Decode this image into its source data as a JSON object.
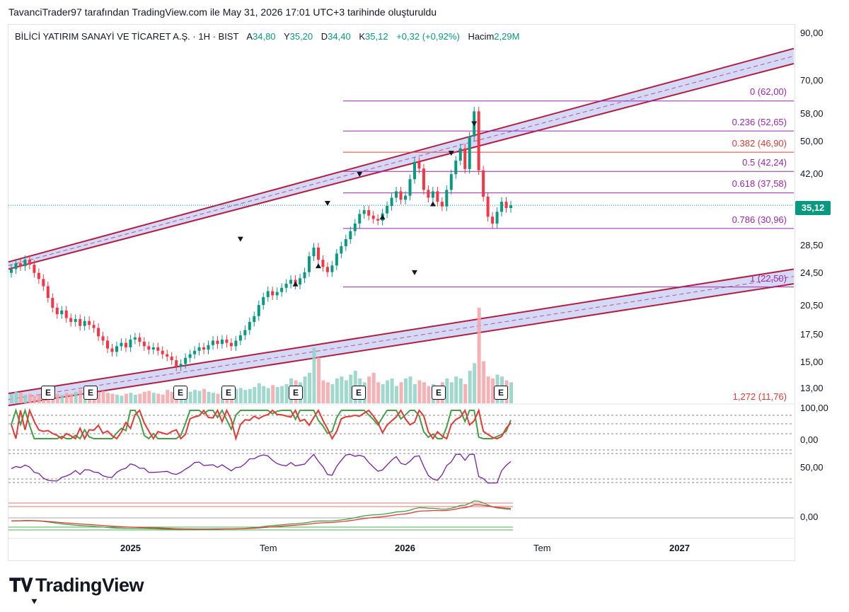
{
  "snapshot_text": "TavanciTrader97 tarafından TradingView.com ile May 31, 2026 17:01 UTC+3 tarihinde oluşturuldu",
  "legend": {
    "symbol": "BİLİCİ YATIRIM SANAYİ VE TİCARET A.Ş. · 1H · BIST",
    "open_label": "A",
    "open": "34,80",
    "high_label": "Y",
    "high": "35,20",
    "low_label": "D",
    "low": "34,40",
    "close_label": "K",
    "close": "35,12",
    "change": "+0,32 (+0,92%)",
    "volume_label": "Hacim",
    "volume": "2,29M"
  },
  "last_price_tag": "35,12",
  "price_axis": [
    "90,00",
    "70,00",
    "58,00",
    "50,00",
    "42,00",
    "35,12",
    "28,50",
    "24,50",
    "20,50",
    "17,50",
    "15,00",
    "13,00"
  ],
  "fib_levels": [
    {
      "label": "0 (62,00)",
      "price": 62.0,
      "color": "#9c27b0"
    },
    {
      "label": "0.236 (52,65)",
      "price": 52.65,
      "color": "#9c27b0"
    },
    {
      "label": "0.382 (46,90)",
      "price": 46.9,
      "color": "#e53935"
    },
    {
      "label": "0.5 (42,24)",
      "price": 42.24,
      "color": "#9c27b0"
    },
    {
      "label": "0.618 (37,58)",
      "price": 37.58,
      "color": "#9c27b0"
    },
    {
      "label": "0.786 (30,96)",
      "price": 30.96,
      "color": "#9c27b0"
    },
    {
      "label": "1 (22,50)",
      "price": 22.5,
      "color": "#9c27b0"
    },
    {
      "label": "1,272 (11,76)",
      "price": 11.76,
      "color": "#e53935"
    }
  ],
  "osc_axis": {
    "stoch_high": "100,00",
    "stoch_low": "0,00",
    "rsi_mid": "50,00",
    "macd_zero": "0,00"
  },
  "time_axis": [
    {
      "label": "2025",
      "bold": true
    },
    {
      "label": "Tem",
      "bold": false
    },
    {
      "label": "2026",
      "bold": true
    },
    {
      "label": "Tem",
      "bold": false
    },
    {
      "label": "2027",
      "bold": true
    }
  ],
  "earnings_marker": "E",
  "brand": "TradingView",
  "colors": {
    "up": "#089981",
    "down": "#f23645",
    "channel": "#b71c3c",
    "channel_fill": "#c7ccf6",
    "fib": "#9c27b0"
  },
  "chart_data": {
    "type": "candlestick",
    "symbol": "BİLİCİ YATIRIM SANAYİ VE TİCARET A.Ş.",
    "interval": "1H",
    "y_scale": "log",
    "ylim": [
      11.5,
      92
    ],
    "last_close": 35.12,
    "closes": [
      24.8,
      25.6,
      25.2,
      26.1,
      25.4,
      24.3,
      23.5,
      22.6,
      21.2,
      20.1,
      19.4,
      19.8,
      19.0,
      18.6,
      18.9,
      18.2,
      18.7,
      18.3,
      18.0,
      17.2,
      16.8,
      16.1,
      15.8,
      16.3,
      16.6,
      16.2,
      16.9,
      17.1,
      16.7,
      16.3,
      16.0,
      16.2,
      15.9,
      15.6,
      15.4,
      15.1,
      14.6,
      14.8,
      15.3,
      15.6,
      15.9,
      16.2,
      16.0,
      16.4,
      16.8,
      16.5,
      16.9,
      16.6,
      16.3,
      16.8,
      17.3,
      17.8,
      18.6,
      19.2,
      20.4,
      21.3,
      22.0,
      21.5,
      21.9,
      22.4,
      22.9,
      23.4,
      22.8,
      23.6,
      24.4,
      26.6,
      27.9,
      26.1,
      25.1,
      24.4,
      25.3,
      27.0,
      28.1,
      29.2,
      30.5,
      31.8,
      33.5,
      34.2,
      33.2,
      32.6,
      32.3,
      33.6,
      35.0,
      36.6,
      37.9,
      36.2,
      37.0,
      40.5,
      44.5,
      42.9,
      38.2,
      36.6,
      37.9,
      35.8,
      34.9,
      38.2,
      41.6,
      44.8,
      47.9,
      42.8,
      51.1,
      58.6,
      42.5,
      36.8,
      33.0,
      31.8,
      33.9,
      35.8,
      34.6,
      35.1
    ],
    "volume_relative": [
      0.1,
      0.12,
      0.11,
      0.09,
      0.1,
      0.08,
      0.09,
      0.13,
      0.11,
      0.12,
      0.1,
      0.09,
      0.11,
      0.1,
      0.12,
      0.14,
      0.11,
      0.1,
      0.09,
      0.12,
      0.13,
      0.11,
      0.1,
      0.09,
      0.08,
      0.1,
      0.11,
      0.09,
      0.1,
      0.12,
      0.13,
      0.11,
      0.1,
      0.09,
      0.14,
      0.12,
      0.13,
      0.11,
      0.1,
      0.12,
      0.14,
      0.13,
      0.15,
      0.12,
      0.11,
      0.1,
      0.13,
      0.12,
      0.14,
      0.15,
      0.16,
      0.14,
      0.15,
      0.17,
      0.21,
      0.18,
      0.16,
      0.19,
      0.17,
      0.18,
      0.2,
      0.26,
      0.24,
      0.22,
      0.28,
      0.32,
      0.58,
      0.48,
      0.24,
      0.22,
      0.2,
      0.26,
      0.28,
      0.24,
      0.3,
      0.34,
      0.26,
      0.22,
      0.28,
      0.32,
      0.22,
      0.2,
      0.24,
      0.26,
      0.18,
      0.22,
      0.26,
      0.28,
      0.2,
      0.24,
      0.22,
      0.18,
      0.2,
      0.16,
      0.22,
      0.26,
      0.22,
      0.28,
      0.26,
      0.2,
      0.34,
      0.42,
      1.0,
      0.44,
      0.28,
      0.26,
      0.3,
      0.28,
      0.24,
      0.22
    ],
    "channel_upper": {
      "outer_start": 25.8,
      "outer_end": 82.5,
      "inner_start": 24.8,
      "inner_end": 76.0
    },
    "channel_lower": {
      "outer_start": 12.6,
      "outer_end": 24.8,
      "inner_start": 11.8,
      "inner_end": 22.9
    }
  }
}
